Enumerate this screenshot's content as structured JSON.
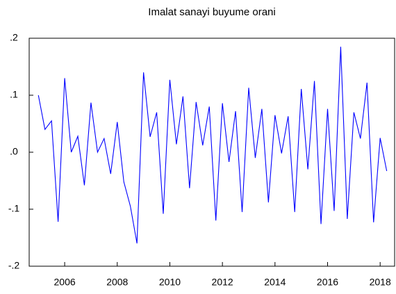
{
  "chart_data": {
    "type": "line",
    "title": "Imalat sanayi buyume orani",
    "x": [
      2005,
      2005.25,
      2005.5,
      2005.75,
      2006,
      2006.25,
      2006.5,
      2006.75,
      2007,
      2007.25,
      2007.5,
      2007.75,
      2008,
      2008.25,
      2008.5,
      2008.75,
      2009,
      2009.25,
      2009.5,
      2009.75,
      2010,
      2010.25,
      2010.5,
      2010.75,
      2011,
      2011.25,
      2011.5,
      2011.75,
      2012,
      2012.25,
      2012.5,
      2012.75,
      2013,
      2013.25,
      2013.5,
      2013.75,
      2014,
      2014.25,
      2014.5,
      2014.75,
      2015,
      2015.25,
      2015.5,
      2015.75,
      2016,
      2016.25,
      2016.5,
      2016.75,
      2017,
      2017.25,
      2017.5,
      2017.75,
      2018,
      2018.25
    ],
    "series": [
      {
        "color": "#0000ff",
        "values": [
          0.1,
          0.04,
          0.055,
          -0.122,
          0.13,
          0.0,
          0.028,
          -0.058,
          0.087,
          0.0,
          0.024,
          -0.038,
          0.053,
          -0.052,
          -0.095,
          -0.16,
          0.14,
          0.027,
          0.07,
          -0.108,
          0.127,
          0.014,
          0.098,
          -0.063,
          0.088,
          0.012,
          0.08,
          -0.12,
          0.086,
          -0.017,
          0.072,
          -0.105,
          0.113,
          -0.01,
          0.076,
          -0.088,
          0.065,
          -0.002,
          0.063,
          -0.105,
          0.111,
          -0.03,
          0.125,
          -0.126,
          0.076,
          -0.103,
          0.185,
          -0.117,
          0.07,
          0.024,
          0.122,
          -0.123,
          0.025,
          -0.033
        ]
      }
    ],
    "xlim": [
      2004.65,
      2018.55
    ],
    "xticks": [
      2006,
      2008,
      2010,
      2012,
      2014,
      2016,
      2018
    ],
    "ylim": [
      -0.2,
      0.2
    ],
    "yticks": [
      {
        "value": 0.2,
        "label": ".2"
      },
      {
        "value": 0.1,
        "label": ".1"
      },
      {
        "value": 0,
        "label": ".0"
      },
      {
        "value": -0.1,
        "label": "-.1"
      },
      {
        "value": -0.2,
        "label": "-.2"
      }
    ]
  }
}
